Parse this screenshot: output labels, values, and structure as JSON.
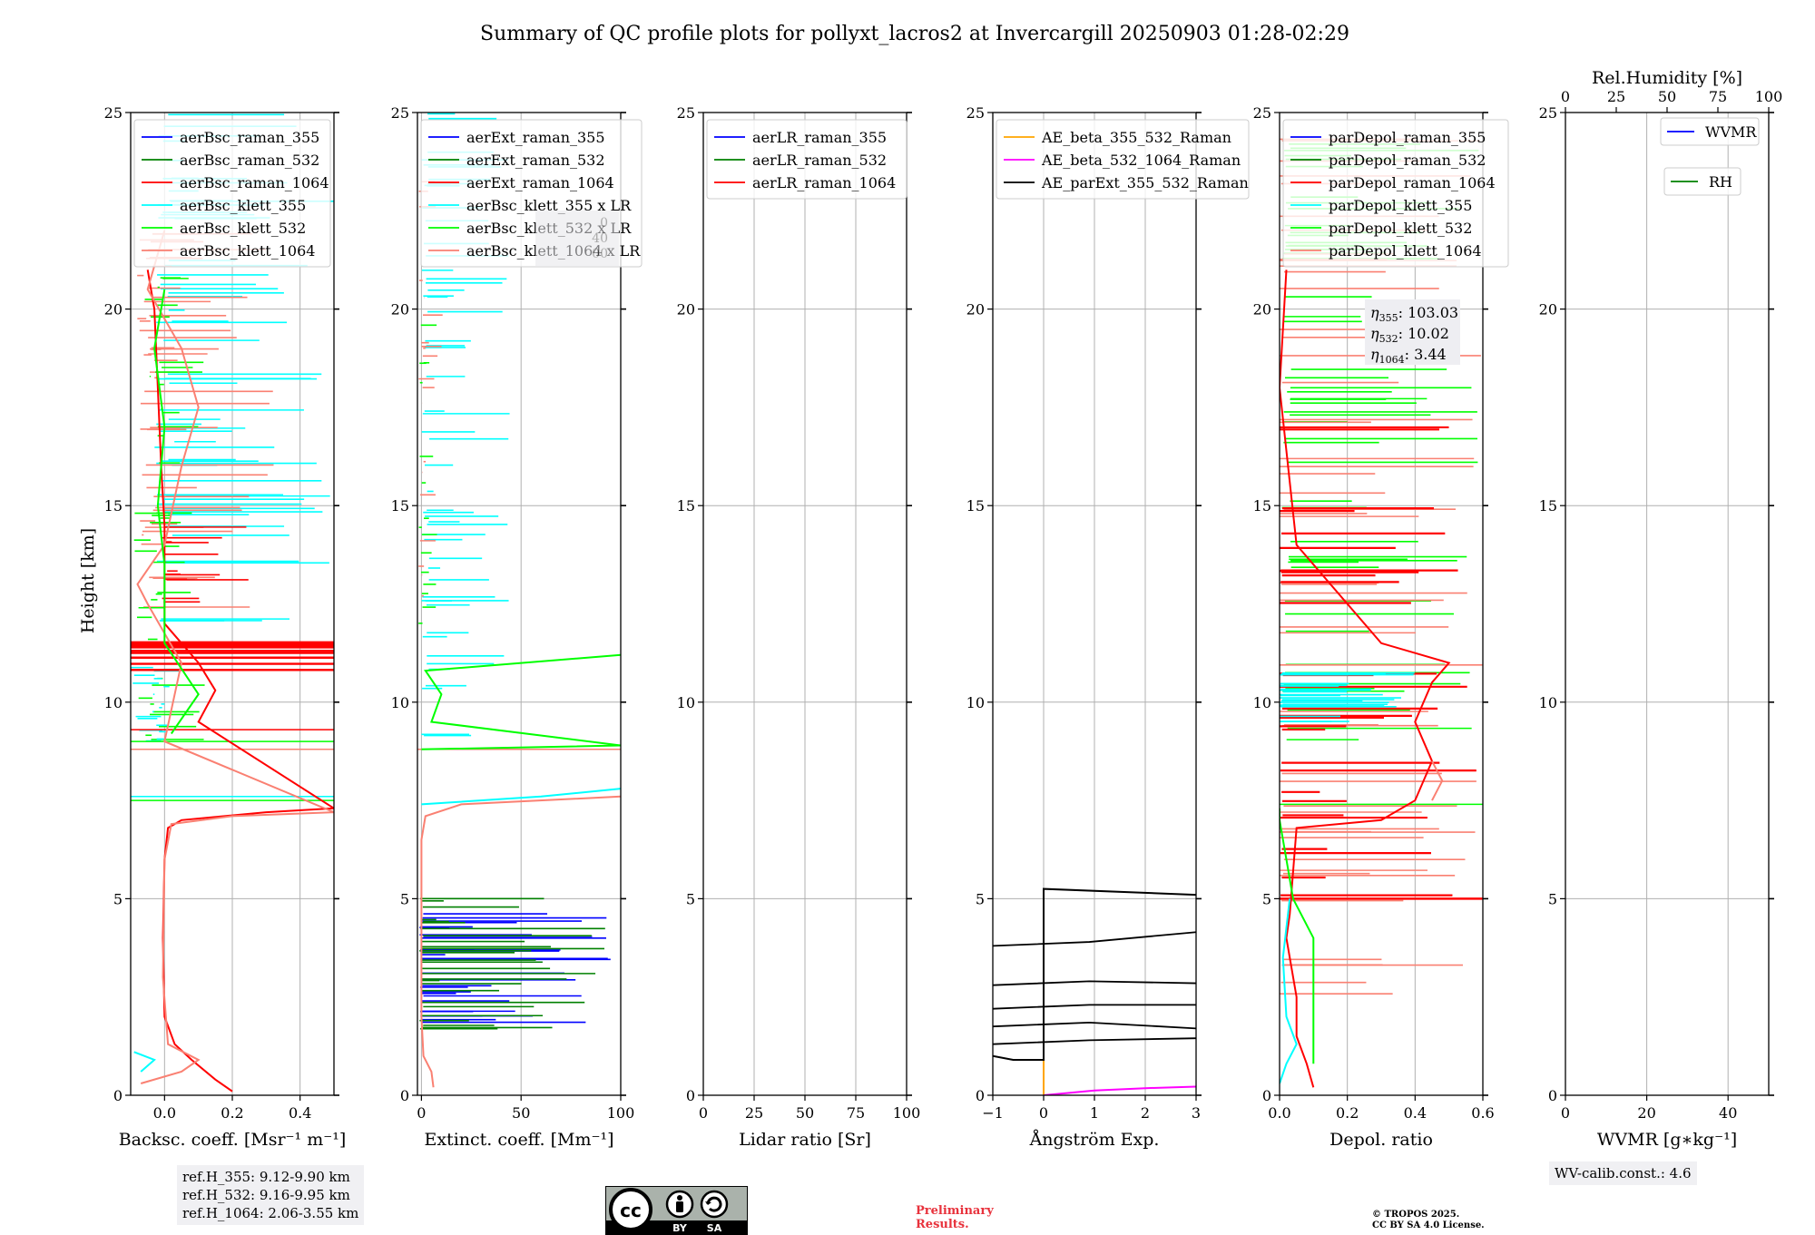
{
  "title": "Summary of QC profile plots for pollyxt_lacros2 at Invercargill 20250903 01:28-02:29",
  "colors": {
    "raman_355": "#0000ff",
    "raman_532": "#008000",
    "raman_1064": "#ff0000",
    "klett_355": "#00ffff",
    "klett_532": "#00ff00",
    "klett_1064": "#fa8072",
    "ae_beta_355_532": "#ffa500",
    "ae_beta_532_1064": "#ff00ff",
    "ae_parext": "#000000",
    "wvmr": "#0000ff",
    "rh": "#008000",
    "grid": "#b0b0b0"
  },
  "ylabel": "Height [km]",
  "reference_heights": [
    "ref.H_355: 9.12-9.90 km",
    "ref.H_532: 9.16-9.95 km",
    "ref.H_1064: 2.06-3.55 km"
  ],
  "wv_calib": "WV-calib.const.: 4.6",
  "preliminary": [
    "Preliminary",
    "Results."
  ],
  "copyright": [
    "© TROPOS 2025.",
    "CC BY SA 4.0 License."
  ],
  "license_badge": {
    "cc": "cc",
    "by": "BY",
    "sa": "SA"
  },
  "chart_data": [
    {
      "type": "line",
      "name": "backscatter",
      "xlabel": "Backsc. coeff. [Msr⁻¹ m⁻¹]",
      "xlim": [
        -0.1,
        0.5
      ],
      "xticks": [
        0.0,
        0.2,
        0.4
      ],
      "xtick_labels": [
        "0.0",
        "0.2",
        "0.4"
      ],
      "ylim": [
        0,
        25
      ],
      "yticks": [
        0,
        5,
        10,
        15,
        20,
        25
      ],
      "legend": [
        "aerBsc_raman_355",
        "aerBsc_raman_532",
        "aerBsc_raman_1064",
        "aerBsc_klett_355",
        "aerBsc_klett_532",
        "aerBsc_klett_1064"
      ],
      "series": [
        {
          "name": "aerBsc_raman_1064",
          "color_key": "raman_1064",
          "points": [
            [
              0.2,
              0.1
            ],
            [
              0.15,
              0.4
            ],
            [
              0.08,
              0.9
            ],
            [
              0.03,
              1.3
            ],
            [
              0.0,
              2.0
            ],
            [
              -0.005,
              4.0
            ],
            [
              0.0,
              6.0
            ],
            [
              0.01,
              6.8
            ],
            [
              0.05,
              7.0
            ],
            [
              0.3,
              7.2
            ],
            [
              0.5,
              7.3
            ],
            [
              0.1,
              9.5
            ],
            [
              0.15,
              10.3
            ],
            [
              0.1,
              11.0
            ],
            [
              0.0,
              12.0
            ],
            [
              0.0,
              13.5
            ],
            [
              0.0,
              14.5
            ],
            [
              -0.01,
              16.0
            ],
            [
              -0.02,
              18.0
            ],
            [
              -0.03,
              20.0
            ],
            [
              -0.05,
              21.0
            ]
          ]
        },
        {
          "name": "aerBsc_klett_1064",
          "color_key": "klett_1064",
          "points": [
            [
              -0.07,
              0.3
            ],
            [
              0.05,
              0.6
            ],
            [
              0.1,
              0.9
            ],
            [
              0.01,
              1.3
            ],
            [
              -0.005,
              3.0
            ],
            [
              0.0,
              6.0
            ],
            [
              0.02,
              6.9
            ],
            [
              0.2,
              7.1
            ],
            [
              0.5,
              7.2
            ],
            [
              0.0,
              9.0
            ],
            [
              0.05,
              11.0
            ],
            [
              -0.05,
              12.5
            ],
            [
              -0.08,
              13.0
            ],
            [
              0.0,
              14.0
            ],
            [
              0.05,
              16.0
            ],
            [
              0.1,
              17.5
            ],
            [
              0.05,
              19.0
            ],
            [
              -0.05,
              20.5
            ],
            [
              0.0,
              22.0
            ]
          ]
        },
        {
          "name": "aerBsc_klett_355",
          "color_key": "klett_355",
          "points": [
            [
              -0.07,
              0.6
            ],
            [
              -0.03,
              0.9
            ],
            [
              -0.09,
              1.1
            ]
          ]
        },
        {
          "name": "aerBsc_klett_532",
          "color_key": "klett_532",
          "points": [
            [
              0.02,
              9.2
            ],
            [
              0.1,
              10.2
            ],
            [
              0.0,
              11.5
            ],
            [
              0.0,
              13.5
            ],
            [
              -0.02,
              15.0
            ],
            [
              0.0,
              17.0
            ],
            [
              -0.03,
              19.0
            ],
            [
              0.0,
              20.5
            ]
          ]
        }
      ]
    },
    {
      "type": "line",
      "name": "extinction",
      "xlabel": "Extinct. coeff. [Mm⁻¹]",
      "xlim": [
        -2,
        100
      ],
      "xticks": [
        0,
        50,
        100
      ],
      "xtick_labels": [
        "0",
        "50",
        "100"
      ],
      "ylim": [
        0,
        25
      ],
      "yticks": [
        0,
        5,
        10,
        15,
        20,
        25
      ],
      "legend": [
        "aerExt_raman_355",
        "aerExt_raman_532",
        "aerExt_raman_1064",
        "aerBsc_klett_355 x LR",
        "aerBsc_klett_532 x LR",
        "aerBsc_klett_1064 x LR"
      ],
      "overlapped_box": [
        "0",
        "40",
        "00"
      ],
      "series": [
        {
          "name": "aerBsc_klett_1064 x LR",
          "color_key": "klett_1064",
          "points": [
            [
              6,
              0.2
            ],
            [
              5,
              0.6
            ],
            [
              1,
              1.0
            ],
            [
              0,
              2.0
            ],
            [
              0,
              6.5
            ],
            [
              2,
              7.1
            ],
            [
              20,
              7.4
            ],
            [
              100,
              7.6
            ]
          ]
        },
        {
          "name": "aerBsc_klett_532 x LR",
          "color_key": "klett_532",
          "points": [
            [
              0,
              8.8
            ],
            [
              100,
              8.9
            ],
            [
              5,
              9.5
            ],
            [
              10,
              10.2
            ],
            [
              2,
              10.8
            ],
            [
              100,
              11.2
            ]
          ]
        },
        {
          "name": "aerBsc_klett_355 x LR",
          "color_key": "klett_355",
          "points": [
            [
              0,
              7.4
            ],
            [
              60,
              7.6
            ],
            [
              100,
              7.8
            ]
          ]
        }
      ]
    },
    {
      "type": "line",
      "name": "lidar_ratio",
      "xlabel": "Lidar ratio [Sr]",
      "xlim": [
        0,
        100
      ],
      "xticks": [
        0,
        25,
        50,
        75,
        100
      ],
      "xtick_labels": [
        "0",
        "25",
        "50",
        "75",
        "100"
      ],
      "ylim": [
        0,
        25
      ],
      "yticks": [
        0,
        5,
        10,
        15,
        20,
        25
      ],
      "legend": [
        "aerLR_raman_355",
        "aerLR_raman_532",
        "aerLR_raman_1064"
      ],
      "series": []
    },
    {
      "type": "line",
      "name": "angstrom",
      "xlabel": "Ångström Exp.",
      "xlim": [
        -1,
        3
      ],
      "xticks": [
        -1,
        0,
        1,
        2,
        3
      ],
      "xtick_labels": [
        "−1",
        "0",
        "1",
        "2",
        "3"
      ],
      "ylim": [
        0,
        25
      ],
      "yticks": [
        0,
        5,
        10,
        15,
        20,
        25
      ],
      "legend": [
        "AE_beta_355_532_Raman",
        "AE_beta_532_1064_Raman",
        "AE_parExt_355_532_Raman"
      ],
      "series": [
        {
          "name": "AE_beta_355_532_Raman",
          "color_key": "ae_beta_355_532",
          "points": [
            [
              0,
              0
            ],
            [
              0,
              5.2
            ]
          ]
        },
        {
          "name": "AE_beta_532_1064_Raman",
          "color_key": "ae_beta_532_1064",
          "points": [
            [
              0,
              0
            ],
            [
              1,
              0.12
            ],
            [
              2,
              0.18
            ],
            [
              3,
              0.22
            ]
          ]
        },
        {
          "name": "AE_parExt_355_532_Raman",
          "color_key": "ae_parext",
          "points": [
            [
              -1,
              1.0
            ],
            [
              -0.6,
              0.9
            ],
            [
              0,
              0.9
            ],
            [
              0,
              5.25
            ],
            [
              3,
              5.1
            ]
          ]
        }
      ]
    },
    {
      "type": "line",
      "name": "depolarization",
      "xlabel": "Depol. ratio",
      "xlim": [
        0,
        0.6
      ],
      "xticks": [
        0.0,
        0.2,
        0.4,
        0.6
      ],
      "xtick_labels": [
        "0.0",
        "0.2",
        "0.4",
        "0.6"
      ],
      "ylim": [
        0,
        25
      ],
      "yticks": [
        0,
        5,
        10,
        15,
        20,
        25
      ],
      "legend": [
        "parDepol_raman_355",
        "parDepol_raman_532",
        "parDepol_raman_1064",
        "parDepol_klett_355",
        "parDepol_klett_532",
        "parDepol_klett_1064"
      ],
      "eta": [
        "103.03",
        "10.02",
        "3.44"
      ],
      "series": [
        {
          "name": "parDepol_raman_1064",
          "color_key": "raman_1064",
          "points": [
            [
              0.1,
              0.2
            ],
            [
              0.08,
              0.8
            ],
            [
              0.05,
              1.5
            ],
            [
              0.05,
              2.5
            ],
            [
              0.02,
              4.0
            ],
            [
              0.03,
              4.6
            ],
            [
              0.05,
              6.8
            ],
            [
              0.3,
              7.0
            ],
            [
              0.4,
              7.5
            ],
            [
              0.45,
              8.5
            ],
            [
              0.4,
              9.5
            ],
            [
              0.45,
              10.5
            ],
            [
              0.5,
              11.0
            ],
            [
              0.3,
              11.5
            ],
            [
              0.05,
              14.0
            ],
            [
              0.0,
              18.0
            ],
            [
              0.02,
              21.0
            ]
          ]
        },
        {
          "name": "parDepol_klett_532",
          "color_key": "klett_532",
          "points": [
            [
              0.1,
              0.8
            ],
            [
              0.1,
              2.5
            ],
            [
              0.1,
              4.0
            ],
            [
              0.04,
              5.0
            ],
            [
              0.02,
              6.0
            ],
            [
              0.0,
              7.0
            ],
            [
              0.0,
              7.3
            ]
          ]
        },
        {
          "name": "parDepol_klett_355",
          "color_key": "klett_355",
          "points": [
            [
              0.0,
              0.3
            ],
            [
              0.02,
              0.8
            ],
            [
              0.05,
              1.3
            ],
            [
              0.02,
              2.0
            ],
            [
              0.01,
              3.5
            ],
            [
              0.03,
              5.0
            ]
          ]
        },
        {
          "name": "parDepol_klett_1064",
          "color_key": "klett_1064",
          "points": [
            [
              0.45,
              7.5
            ],
            [
              0.48,
              8.0
            ],
            [
              0.45,
              8.5
            ]
          ]
        }
      ]
    },
    {
      "type": "line",
      "name": "water_vapor",
      "xlabel": "WVMR [g∗kg⁻¹]",
      "xlim": [
        0,
        50
      ],
      "xticks": [
        0,
        20,
        40
      ],
      "xtick_labels": [
        "0",
        "20",
        "40"
      ],
      "top_xlabel": "Rel.Humidity [%]",
      "top_xticks": [
        0,
        25,
        50,
        75,
        100
      ],
      "top_xtick_labels": [
        "0",
        "25",
        "50",
        "75",
        "100"
      ],
      "ylim": [
        0,
        25
      ],
      "yticks": [
        0,
        5,
        10,
        15,
        20,
        25
      ],
      "legend": [
        "WVMR",
        "RH"
      ],
      "series": []
    }
  ]
}
